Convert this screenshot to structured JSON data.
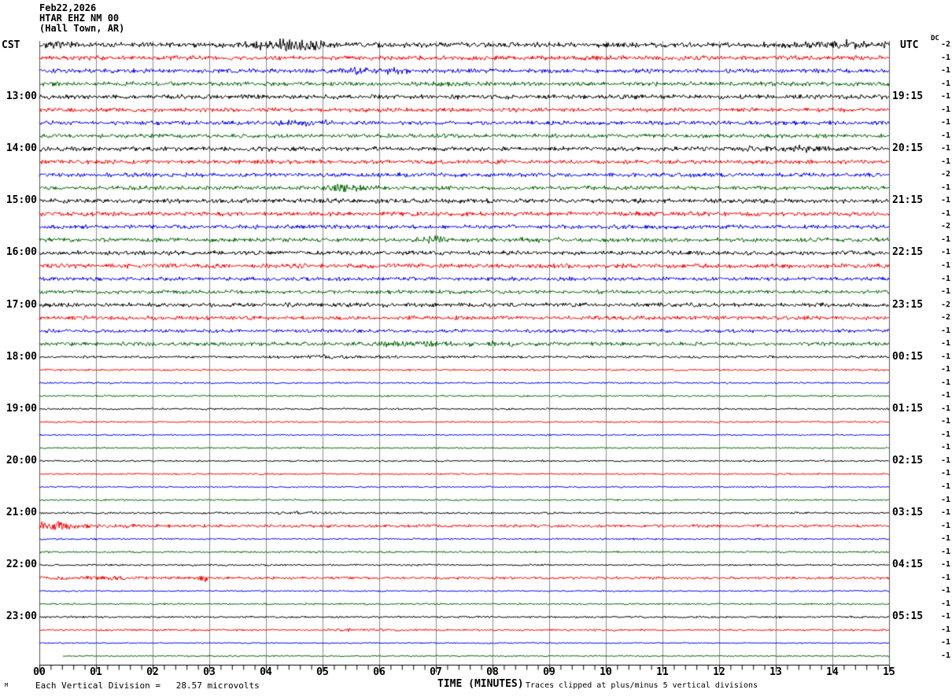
{
  "header": {
    "date": "Feb22,2026",
    "station": "HTAR EHZ NM 00",
    "location": "(Hall Town, AR)"
  },
  "left_axis": {
    "label": "CST"
  },
  "right_axis": {
    "label": "UTC",
    "dc_label": "DC"
  },
  "x_axis": {
    "title": "TIME (MINUTES)",
    "ticks": [
      "00",
      "01",
      "02",
      "03",
      "04",
      "05",
      "06",
      "07",
      "08",
      "09",
      "10",
      "11",
      "12",
      "13",
      "14",
      "15"
    ]
  },
  "footer": {
    "scale_text": "Each Vertical Division =   28.57 microvolts",
    "clip_note": "Traces clipped at plus/minus 5 vertical divisions",
    "mark": "M"
  },
  "chart_data": {
    "type": "line",
    "subtype": "helicorder-seismogram",
    "minutes_per_line": 15,
    "grid": true,
    "grid_color": "#8a8a8a",
    "axis_color": "#000000",
    "color_cycle": {
      "black": "#000000",
      "red": "#ff0000",
      "blue": "#0000ee",
      "green": "#006600"
    },
    "traces": [
      {
        "cst": "",
        "utc": "",
        "dc": -2,
        "color": "black",
        "amp": 2.3,
        "start": 0,
        "events": [
          {
            "m": 0.3,
            "a": 3,
            "w": 0.3
          },
          {
            "m": 4.35,
            "a": 8,
            "w": 0.5
          },
          {
            "m": 14.2,
            "a": 4,
            "w": 0.7
          }
        ]
      },
      {
        "cst": "",
        "utc": "",
        "dc": -1,
        "color": "red",
        "amp": 2.0,
        "start": 0,
        "events": []
      },
      {
        "cst": "",
        "utc": "",
        "dc": -1,
        "color": "blue",
        "amp": 1.9,
        "start": 0,
        "events": [
          {
            "m": 5.8,
            "a": 3,
            "w": 0.6
          }
        ]
      },
      {
        "cst": "",
        "utc": "",
        "dc": -1,
        "color": "green",
        "amp": 1.9,
        "start": 0,
        "events": []
      },
      {
        "cst": "13:00",
        "utc": "19:15",
        "dc": -1,
        "color": "black",
        "amp": 2.0,
        "start": 0,
        "events": []
      },
      {
        "cst": "",
        "utc": "",
        "dc": -1,
        "color": "red",
        "amp": 1.9,
        "start": 0,
        "events": []
      },
      {
        "cst": "",
        "utc": "",
        "dc": -1,
        "color": "blue",
        "amp": 1.8,
        "start": 0,
        "events": [
          {
            "m": 4.7,
            "a": 2.5,
            "w": 0.4
          }
        ]
      },
      {
        "cst": "",
        "utc": "",
        "dc": -1,
        "color": "green",
        "amp": 1.8,
        "start": 0,
        "events": []
      },
      {
        "cst": "14:00",
        "utc": "20:15",
        "dc": -1,
        "color": "black",
        "amp": 2.0,
        "start": 0,
        "events": [
          {
            "m": 13.2,
            "a": 3,
            "w": 0.6
          }
        ]
      },
      {
        "cst": "",
        "utc": "",
        "dc": -1,
        "color": "red",
        "amp": 1.9,
        "start": 0,
        "events": []
      },
      {
        "cst": "",
        "utc": "",
        "dc": -2,
        "color": "blue",
        "amp": 1.8,
        "start": 0,
        "events": []
      },
      {
        "cst": "",
        "utc": "",
        "dc": -1,
        "color": "green",
        "amp": 1.8,
        "start": 0,
        "events": [
          {
            "m": 5.4,
            "a": 5,
            "w": 0.25
          }
        ]
      },
      {
        "cst": "15:00",
        "utc": "21:15",
        "dc": -1,
        "color": "black",
        "amp": 2.0,
        "start": 0,
        "events": []
      },
      {
        "cst": "",
        "utc": "",
        "dc": -1,
        "color": "red",
        "amp": 2.0,
        "start": 0,
        "events": []
      },
      {
        "cst": "",
        "utc": "",
        "dc": -2,
        "color": "blue",
        "amp": 1.8,
        "start": 0,
        "events": []
      },
      {
        "cst": "",
        "utc": "",
        "dc": -1,
        "color": "green",
        "amp": 1.8,
        "start": 0,
        "events": [
          {
            "m": 6.9,
            "a": 3.5,
            "w": 0.3
          },
          {
            "m": 8.7,
            "a": 2.5,
            "w": 0.3
          }
        ]
      },
      {
        "cst": "16:00",
        "utc": "22:15",
        "dc": -1,
        "color": "black",
        "amp": 1.9,
        "start": 0,
        "events": []
      },
      {
        "cst": "",
        "utc": "",
        "dc": -1,
        "color": "red",
        "amp": 2.0,
        "start": 0,
        "events": []
      },
      {
        "cst": "",
        "utc": "",
        "dc": -1,
        "color": "blue",
        "amp": 1.7,
        "start": 0,
        "events": []
      },
      {
        "cst": "",
        "utc": "",
        "dc": -1,
        "color": "green",
        "amp": 1.7,
        "start": 0,
        "events": []
      },
      {
        "cst": "17:00",
        "utc": "23:15",
        "dc": -2,
        "color": "black",
        "amp": 1.9,
        "start": 0,
        "events": []
      },
      {
        "cst": "",
        "utc": "",
        "dc": -2,
        "color": "red",
        "amp": 1.8,
        "start": 0,
        "events": []
      },
      {
        "cst": "",
        "utc": "",
        "dc": -1,
        "color": "blue",
        "amp": 1.6,
        "start": 0,
        "events": []
      },
      {
        "cst": "",
        "utc": "",
        "dc": -1,
        "color": "green",
        "amp": 1.7,
        "start": 0,
        "events": [
          {
            "m": 6.6,
            "a": 3,
            "w": 0.5
          },
          {
            "m": 8.0,
            "a": 2.5,
            "w": 0.4
          }
        ]
      },
      {
        "cst": "18:00",
        "utc": "00:15",
        "dc": -1,
        "color": "black",
        "amp": 1.1,
        "start": 0,
        "events": [
          {
            "m": 5.3,
            "a": 1.8,
            "w": 0.8
          }
        ]
      },
      {
        "cst": "",
        "utc": "",
        "dc": -1,
        "color": "red",
        "amp": 0.9,
        "start": 0,
        "events": []
      },
      {
        "cst": "",
        "utc": "",
        "dc": -1,
        "color": "blue",
        "amp": 0.8,
        "start": 0,
        "events": []
      },
      {
        "cst": "",
        "utc": "",
        "dc": -1,
        "color": "green",
        "amp": 0.8,
        "start": 0,
        "events": []
      },
      {
        "cst": "19:00",
        "utc": "01:15",
        "dc": -1,
        "color": "black",
        "amp": 0.8,
        "start": 0,
        "events": []
      },
      {
        "cst": "",
        "utc": "",
        "dc": -1,
        "color": "red",
        "amp": 0.8,
        "start": 0,
        "events": []
      },
      {
        "cst": "",
        "utc": "",
        "dc": -1,
        "color": "blue",
        "amp": 0.7,
        "start": 0,
        "events": []
      },
      {
        "cst": "",
        "utc": "",
        "dc": -1,
        "color": "green",
        "amp": 0.7,
        "start": 0,
        "events": []
      },
      {
        "cst": "20:00",
        "utc": "02:15",
        "dc": -1,
        "color": "black",
        "amp": 0.8,
        "start": 0,
        "events": []
      },
      {
        "cst": "",
        "utc": "",
        "dc": -1,
        "color": "red",
        "amp": 0.8,
        "start": 0,
        "events": []
      },
      {
        "cst": "",
        "utc": "",
        "dc": -1,
        "color": "blue",
        "amp": 0.7,
        "start": 0,
        "events": []
      },
      {
        "cst": "",
        "utc": "",
        "dc": -1,
        "color": "green",
        "amp": 0.8,
        "start": 0,
        "events": []
      },
      {
        "cst": "21:00",
        "utc": "03:15",
        "dc": -1,
        "color": "black",
        "amp": 0.9,
        "start": 0,
        "events": [
          {
            "m": 4.6,
            "a": 1.5,
            "w": 0.3
          }
        ]
      },
      {
        "cst": "",
        "utc": "",
        "dc": -1,
        "color": "red",
        "amp": 1.3,
        "start": 0,
        "events": [
          {
            "m": 0.3,
            "a": 5,
            "w": 0.35
          },
          {
            "m": 1.5,
            "a": 2,
            "w": 0.5
          }
        ]
      },
      {
        "cst": "",
        "utc": "",
        "dc": -1,
        "color": "blue",
        "amp": 0.8,
        "start": 0,
        "events": []
      },
      {
        "cst": "",
        "utc": "",
        "dc": -1,
        "color": "green",
        "amp": 0.9,
        "start": 0,
        "events": []
      },
      {
        "cst": "22:00",
        "utc": "04:15",
        "dc": -1,
        "color": "black",
        "amp": 0.8,
        "start": 0,
        "events": []
      },
      {
        "cst": "",
        "utc": "",
        "dc": -1,
        "color": "red",
        "amp": 1.2,
        "start": 0,
        "events": [
          {
            "m": 0.8,
            "a": 2,
            "w": 0.8
          },
          {
            "m": 2.9,
            "a": 4,
            "w": 0.12
          }
        ]
      },
      {
        "cst": "",
        "utc": "",
        "dc": -1,
        "color": "blue",
        "amp": 0.7,
        "start": 0,
        "events": []
      },
      {
        "cst": "",
        "utc": "",
        "dc": -1,
        "color": "green",
        "amp": 0.8,
        "start": 0,
        "events": []
      },
      {
        "cst": "23:00",
        "utc": "05:15",
        "dc": -1,
        "color": "black",
        "amp": 0.9,
        "start": 0,
        "events": []
      },
      {
        "cst": "",
        "utc": "",
        "dc": -1,
        "color": "red",
        "amp": 0.9,
        "start": 0,
        "events": [
          {
            "m": 5.8,
            "a": 1.5,
            "w": 0.5
          }
        ]
      },
      {
        "cst": "",
        "utc": "",
        "dc": -1,
        "color": "blue",
        "amp": 0.6,
        "start": 0,
        "events": []
      },
      {
        "cst": "",
        "utc": "",
        "dc": -1,
        "color": "green",
        "amp": 0.7,
        "start": 0.42,
        "events": []
      }
    ]
  }
}
